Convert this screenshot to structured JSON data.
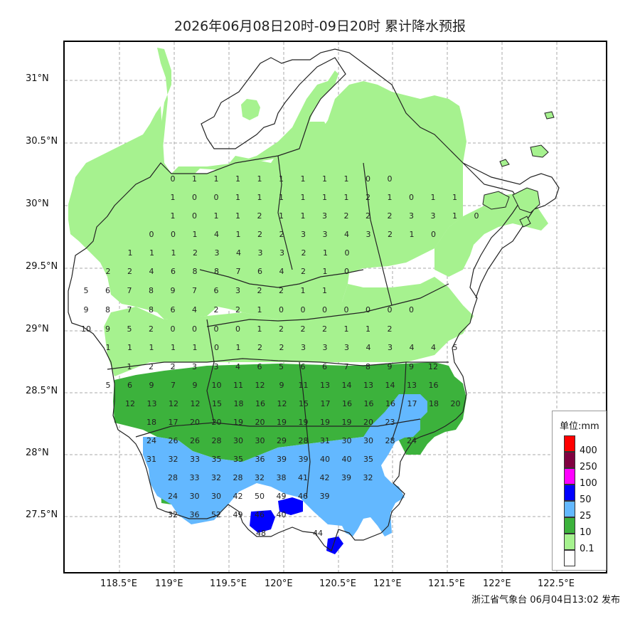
{
  "title": "2026年06月08日20时-09日20时 累计降水预报",
  "footer": "浙江省气象台 06月04日13:02 发布",
  "axes": {
    "lat_labels": [
      "31°N",
      "30.5°N",
      "30°N",
      "29.5°N",
      "29°N",
      "28.5°N",
      "28°N",
      "27.5°N"
    ],
    "lon_labels": [
      "118.5°E",
      "119°E",
      "119.5°E",
      "120°E",
      "120.5°E",
      "121°E",
      "121.5°E",
      "122°E",
      "122.5°E"
    ]
  },
  "legend": {
    "title": "单位:mm",
    "items": [
      {
        "label": "400",
        "color": "#ff0000"
      },
      {
        "label": "250",
        "color": "#800040"
      },
      {
        "label": "100",
        "color": "#ff00ff"
      },
      {
        "label": "50",
        "color": "#0000ff"
      },
      {
        "label": "25",
        "color": "#63b8ff"
      },
      {
        "label": "10",
        "color": "#3cb23c"
      },
      {
        "label": "0.1",
        "color": "#a6f28f"
      },
      {
        "label": "",
        "color": "#ffffff"
      }
    ]
  },
  "grid_values": [
    {
      "row": "0",
      "vals": []
    },
    {
      "row": "30.25",
      "vals": [
        "0",
        "1",
        "1",
        "1",
        "1",
        "1",
        "1",
        "1",
        "1",
        "0",
        "0"
      ]
    },
    {
      "row": "30.1",
      "vals": [
        "1",
        "0",
        "0",
        "1",
        "1",
        "1",
        "1",
        "1",
        "1",
        "2",
        "1",
        "0",
        "1",
        "1"
      ]
    },
    {
      "row": "29.9",
      "vals": [
        "1",
        "0",
        "1",
        "1",
        "2",
        "1",
        "1",
        "3",
        "2",
        "2",
        "2",
        "3",
        "3",
        "1",
        "0"
      ]
    },
    {
      "row": "29.75",
      "vals": [
        "0",
        "0",
        "1",
        "4",
        "1",
        "2",
        "2",
        "3",
        "3",
        "4",
        "3",
        "2",
        "1",
        "0"
      ]
    },
    {
      "row": "29.6",
      "vals": [
        "1",
        "1",
        "1",
        "2",
        "3",
        "4",
        "3",
        "3",
        "2",
        "1",
        "0"
      ]
    },
    {
      "row": "29.45",
      "vals": [
        "2",
        "2",
        "4",
        "6",
        "8",
        "8",
        "7",
        "6",
        "4",
        "2",
        "1",
        "0"
      ]
    },
    {
      "row": "29.3",
      "vals": [
        "5",
        "6",
        "7",
        "8",
        "9",
        "7",
        "6",
        "3",
        "2",
        "2",
        "1",
        "1"
      ]
    },
    {
      "row": "29.15",
      "vals": [
        "9",
        "8",
        "7",
        "8",
        "6",
        "4",
        "2",
        "2",
        "1",
        "0",
        "0",
        "0",
        "0",
        "0",
        "0",
        "0"
      ]
    },
    {
      "row": "29.0",
      "vals": [
        "10",
        "9",
        "5",
        "2",
        "0",
        "0",
        "0",
        "0",
        "1",
        "2",
        "2",
        "2",
        "1",
        "1",
        "2"
      ]
    },
    {
      "row": "28.85",
      "vals": [
        "1",
        "1",
        "1",
        "1",
        "1",
        "0",
        "1",
        "2",
        "2",
        "3",
        "3",
        "3",
        "4",
        "3",
        "4",
        "4",
        "5"
      ]
    },
    {
      "row": "28.7",
      "vals": [
        "1",
        "2",
        "2",
        "3",
        "3",
        "4",
        "6",
        "5",
        "6",
        "6",
        "7",
        "8",
        "9",
        "9",
        "12"
      ]
    },
    {
      "row": "28.55",
      "vals": [
        "5",
        "6",
        "9",
        "7",
        "9",
        "10",
        "11",
        "12",
        "9",
        "11",
        "13",
        "14",
        "13",
        "14",
        "13",
        "16"
      ]
    },
    {
      "row": "28.4",
      "vals": [
        "12",
        "13",
        "12",
        "12",
        "15",
        "18",
        "16",
        "12",
        "15",
        "17",
        "16",
        "16",
        "16",
        "17",
        "18",
        "20"
      ]
    },
    {
      "row": "28.25",
      "vals": [
        "18",
        "17",
        "20",
        "20",
        "19",
        "20",
        "19",
        "19",
        "19",
        "19",
        "20",
        "23"
      ]
    },
    {
      "row": "28.1",
      "vals": [
        "24",
        "26",
        "26",
        "28",
        "30",
        "30",
        "29",
        "28",
        "31",
        "30",
        "30",
        "28",
        "24"
      ]
    },
    {
      "row": "27.95",
      "vals": [
        "31",
        "32",
        "33",
        "35",
        "35",
        "36",
        "39",
        "39",
        "40",
        "40",
        "35"
      ]
    },
    {
      "row": "27.8",
      "vals": [
        "28",
        "33",
        "32",
        "28",
        "32",
        "38",
        "41",
        "42",
        "39",
        "32"
      ]
    },
    {
      "row": "27.65",
      "vals": [
        "24",
        "30",
        "30",
        "42",
        "50",
        "49",
        "46",
        "39"
      ]
    },
    {
      "row": "27.5",
      "vals": [
        "32",
        "36",
        "52",
        "49",
        "46",
        "40"
      ]
    },
    {
      "row": "27.35",
      "vals": [
        "48",
        "44"
      ]
    }
  ]
}
